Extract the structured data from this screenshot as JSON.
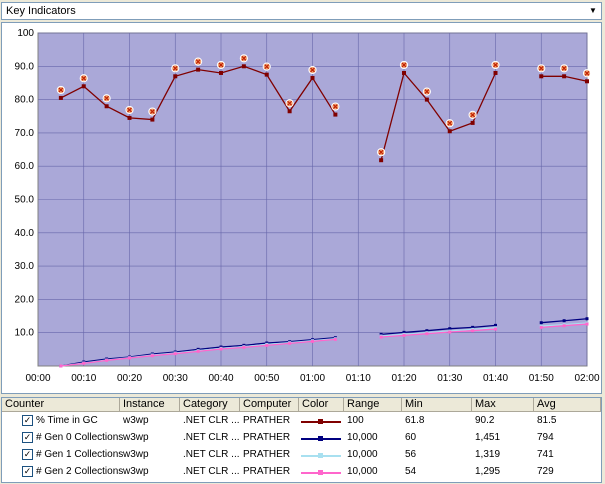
{
  "combo": {
    "value": "Key Indicators",
    "arrow_icon": "chevron-down-icon"
  },
  "chart_data": {
    "type": "line",
    "ylim": [
      0,
      100
    ],
    "y_ticks": [
      "10.0",
      "20.0",
      "30.0",
      "40.0",
      "50.0",
      "60.0",
      "70.0",
      "80.0",
      "90.0",
      "100"
    ],
    "x_ticks": [
      "00:00",
      "00:10",
      "00:20",
      "00:30",
      "00:40",
      "00:50",
      "01:00",
      "01:10",
      "01:20",
      "01:30",
      "01:40",
      "01:50",
      "02:00"
    ],
    "background": "#aaa8d8",
    "grid": true,
    "series": [
      {
        "name": "% Time in GC",
        "color": "#800000",
        "segments": [
          [
            [
              5,
              80.5
            ],
            [
              10,
              84
            ],
            [
              15,
              78
            ],
            [
              20,
              74.5
            ],
            [
              25,
              74
            ],
            [
              30,
              87
            ],
            [
              35,
              89
            ],
            [
              40,
              88
            ],
            [
              45,
              90
            ],
            [
              50,
              87.5
            ],
            [
              55,
              76.5
            ],
            [
              60,
              86.5
            ],
            [
              65,
              75.5
            ]
          ],
          [
            [
              75,
              61.8
            ],
            [
              80,
              88
            ],
            [
              85,
              80
            ],
            [
              90,
              70.5
            ],
            [
              95,
              73
            ],
            [
              100,
              88
            ]
          ],
          [
            [
              110,
              87
            ],
            [
              115,
              87
            ],
            [
              120,
              85.5
            ]
          ]
        ]
      },
      {
        "name": "# Gen 0 Collections",
        "color": "#000080",
        "segments": [
          [
            [
              5,
              0
            ],
            [
              10,
              1.2
            ],
            [
              15,
              2.1
            ],
            [
              20,
              2.7
            ],
            [
              25,
              3.6
            ],
            [
              30,
              4.2
            ],
            [
              35,
              5
            ],
            [
              40,
              5.7
            ],
            [
              45,
              6.2
            ],
            [
              50,
              6.9
            ],
            [
              55,
              7.3
            ],
            [
              60,
              7.9
            ],
            [
              65,
              8.5
            ]
          ],
          [
            [
              75,
              9.5
            ],
            [
              80,
              10.1
            ],
            [
              85,
              10.6
            ],
            [
              90,
              11.2
            ],
            [
              95,
              11.6
            ],
            [
              100,
              12.2
            ]
          ],
          [
            [
              110,
              13
            ],
            [
              115,
              13.6
            ],
            [
              120,
              14.2
            ]
          ]
        ]
      },
      {
        "name": "# Gen 1 Collections",
        "color": "#a8e0f0",
        "segments": [
          [
            [
              5,
              0
            ],
            [
              10,
              0.9
            ],
            [
              15,
              1.8
            ],
            [
              20,
              2.5
            ],
            [
              25,
              3.3
            ],
            [
              30,
              3.9
            ],
            [
              35,
              4.6
            ],
            [
              40,
              5.3
            ],
            [
              45,
              5.8
            ],
            [
              50,
              6.5
            ],
            [
              55,
              7
            ],
            [
              60,
              7.6
            ],
            [
              65,
              8.2
            ]
          ],
          [
            [
              75,
              9
            ],
            [
              80,
              9.5
            ],
            [
              85,
              10
            ],
            [
              90,
              10.5
            ],
            [
              95,
              11
            ],
            [
              100,
              11.5
            ]
          ],
          [
            [
              110,
              12
            ],
            [
              115,
              12.4
            ],
            [
              120,
              12.9
            ]
          ]
        ]
      },
      {
        "name": "# Gen 2 Collections",
        "color": "#ff66cc",
        "segments": [
          [
            [
              5,
              0
            ],
            [
              10,
              0.8
            ],
            [
              15,
              1.7
            ],
            [
              20,
              2.4
            ],
            [
              25,
              3.1
            ],
            [
              30,
              3.7
            ],
            [
              35,
              4.4
            ],
            [
              40,
              5.1
            ],
            [
              45,
              5.6
            ],
            [
              50,
              6.2
            ],
            [
              55,
              6.8
            ],
            [
              60,
              7.4
            ],
            [
              65,
              8
            ]
          ],
          [
            [
              75,
              8.7
            ],
            [
              80,
              9.2
            ],
            [
              85,
              9.7
            ],
            [
              90,
              10.2
            ],
            [
              95,
              10.6
            ],
            [
              100,
              11.1
            ]
          ],
          [
            [
              110,
              11.6
            ],
            [
              115,
              12.1
            ],
            [
              120,
              12.6
            ]
          ]
        ]
      }
    ]
  },
  "table": {
    "headers": [
      "Counter",
      "Instance",
      "Category",
      "Computer",
      "Color",
      "Range",
      "Min",
      "Max",
      "Avg"
    ],
    "rows": [
      {
        "checked": "✓",
        "counter": "% Time in GC",
        "instance": "w3wp",
        "category": ".NET CLR ...",
        "computer": "PRATHER",
        "color": "#800000",
        "range": "100",
        "min": "61.8",
        "max": "90.2",
        "avg": "81.5"
      },
      {
        "checked": "✓",
        "counter": "# Gen 0 Collections",
        "instance": "w3wp",
        "category": ".NET CLR ...",
        "computer": "PRATHER",
        "color": "#000080",
        "range": "10,000",
        "min": "60",
        "max": "1,451",
        "avg": "794"
      },
      {
        "checked": "✓",
        "counter": "# Gen 1 Collections",
        "instance": "w3wp",
        "category": ".NET CLR ...",
        "computer": "PRATHER",
        "color": "#a8e0f0",
        "range": "10,000",
        "min": "56",
        "max": "1,319",
        "avg": "741"
      },
      {
        "checked": "✓",
        "counter": "# Gen 2 Collections",
        "instance": "w3wp",
        "category": ".NET CLR ...",
        "computer": "PRATHER",
        "color": "#ff66cc",
        "range": "10,000",
        "min": "54",
        "max": "1,295",
        "avg": "729"
      }
    ]
  }
}
